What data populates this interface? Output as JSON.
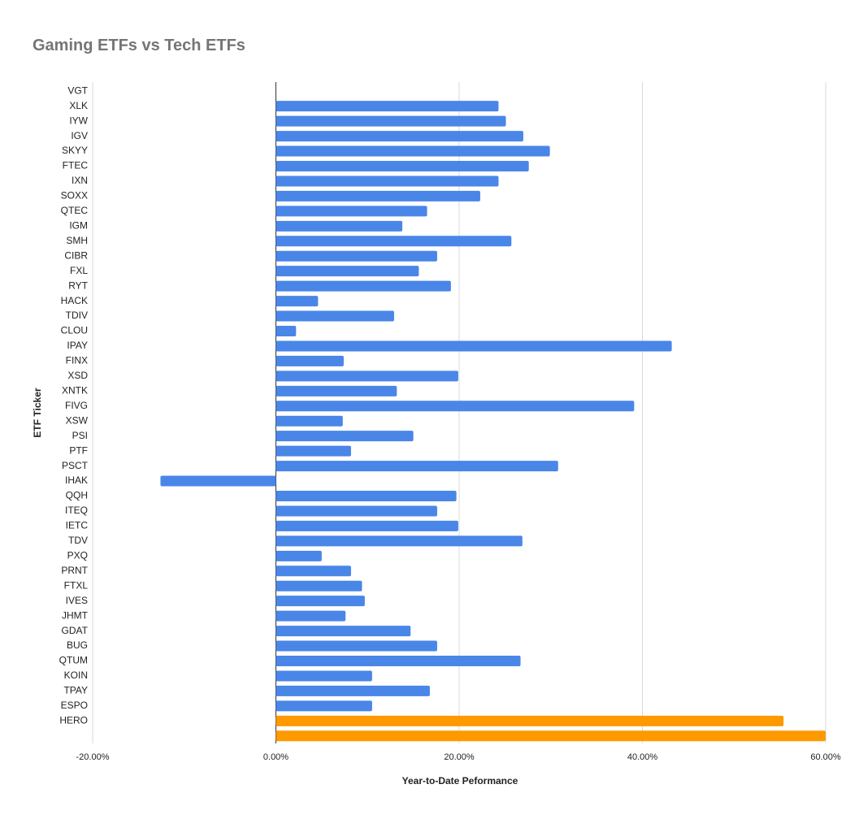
{
  "chart_data": {
    "type": "bar",
    "orientation": "horizontal",
    "title": "Gaming ETFs vs Tech ETFs",
    "x_label": "Year-to-Date Peformance",
    "y_label": "ETF Ticker",
    "categories": [
      "VGT",
      "XLK",
      "IYW",
      "IGV",
      "SKYY",
      "FTEC",
      "IXN",
      "SOXX",
      "QTEC",
      "IGM",
      "SMH",
      "CIBR",
      "FXL",
      "RYT",
      "HACK",
      "TDIV",
      "CLOU",
      "IPAY",
      "FINX",
      "XSD",
      "XNTK",
      "FIVG",
      "XSW",
      "PSI",
      "PTF",
      "PSCT",
      "IHAK",
      "QQH",
      "ITEQ",
      "IETC",
      "TDV",
      "PXQ",
      "PRNT",
      "FTXL",
      "IVES",
      "JHMT",
      "GDAT",
      "BUG",
      "QTUM",
      "KOIN",
      "TPAY",
      "ESPO",
      "HERO",
      null
    ],
    "values": [
      null,
      24.3,
      25.1,
      27.0,
      29.9,
      27.6,
      24.3,
      22.3,
      16.5,
      13.8,
      25.7,
      17.6,
      15.6,
      19.1,
      4.6,
      12.9,
      2.2,
      43.2,
      7.4,
      19.9,
      13.2,
      39.1,
      7.3,
      15.0,
      8.2,
      30.8,
      -12.6,
      19.7,
      17.6,
      19.9,
      26.9,
      5.0,
      8.2,
      9.4,
      9.7,
      7.6,
      14.7,
      17.6,
      26.7,
      10.5,
      16.8,
      10.5,
      55.4,
      60.0
    ],
    "colors": [
      "#4a86e8",
      "#4a86e8",
      "#4a86e8",
      "#4a86e8",
      "#4a86e8",
      "#4a86e8",
      "#4a86e8",
      "#4a86e8",
      "#4a86e8",
      "#4a86e8",
      "#4a86e8",
      "#4a86e8",
      "#4a86e8",
      "#4a86e8",
      "#4a86e8",
      "#4a86e8",
      "#4a86e8",
      "#4a86e8",
      "#4a86e8",
      "#4a86e8",
      "#4a86e8",
      "#4a86e8",
      "#4a86e8",
      "#4a86e8",
      "#4a86e8",
      "#4a86e8",
      "#4a86e8",
      "#4a86e8",
      "#4a86e8",
      "#4a86e8",
      "#4a86e8",
      "#4a86e8",
      "#4a86e8",
      "#4a86e8",
      "#4a86e8",
      "#4a86e8",
      "#4a86e8",
      "#4a86e8",
      "#4a86e8",
      "#4a86e8",
      "#4a86e8",
      "#4a86e8",
      "#ff9900",
      "#ff9900"
    ],
    "xlim": [
      -20,
      60
    ],
    "xticks": [
      {
        "value": -20,
        "label": "-20.00%"
      },
      {
        "value": 0,
        "label": "0.00%"
      },
      {
        "value": 20,
        "label": "20.00%"
      },
      {
        "value": 40,
        "label": "40.00%"
      },
      {
        "value": 60,
        "label": "60.00%"
      }
    ],
    "grid": true
  }
}
